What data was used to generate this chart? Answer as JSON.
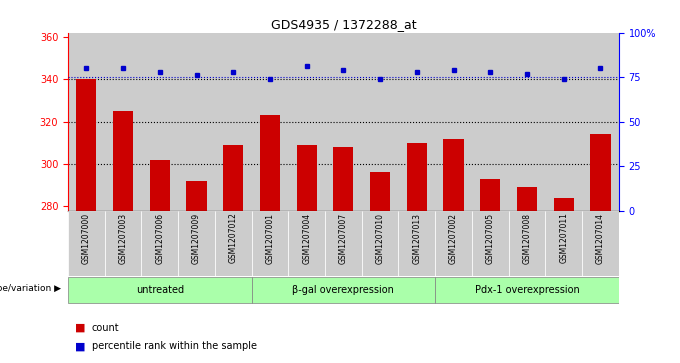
{
  "title": "GDS4935 / 1372288_at",
  "samples": [
    "GSM1207000",
    "GSM1207003",
    "GSM1207006",
    "GSM1207009",
    "GSM1207012",
    "GSM1207001",
    "GSM1207004",
    "GSM1207007",
    "GSM1207010",
    "GSM1207013",
    "GSM1207002",
    "GSM1207005",
    "GSM1207008",
    "GSM1207011",
    "GSM1207014"
  ],
  "counts": [
    340,
    325,
    302,
    292,
    309,
    323,
    309,
    308,
    296,
    310,
    312,
    293,
    289,
    284,
    314
  ],
  "percentiles": [
    80,
    80,
    78,
    76,
    78,
    74,
    81,
    79,
    74,
    78,
    79,
    78,
    77,
    74,
    80
  ],
  "groups": [
    {
      "label": "untreated",
      "start": 0,
      "end": 5
    },
    {
      "label": "β-gal overexpression",
      "start": 5,
      "end": 10
    },
    {
      "label": "Pdx-1 overexpression",
      "start": 10,
      "end": 15
    }
  ],
  "bar_color": "#cc0000",
  "dot_color": "#0000cc",
  "group_bg_color": "#aaffaa",
  "sample_bg_color": "#cccccc",
  "ylim_left": [
    278,
    362
  ],
  "ylim_right": [
    0,
    100
  ],
  "yticks_left": [
    280,
    300,
    320,
    340,
    360
  ],
  "yticks_right": [
    0,
    25,
    50,
    75,
    100
  ],
  "gridlines": [
    300,
    320,
    340
  ],
  "genotype_label": "genotype/variation",
  "legend_count": "count",
  "legend_percentile": "percentile rank within the sample"
}
